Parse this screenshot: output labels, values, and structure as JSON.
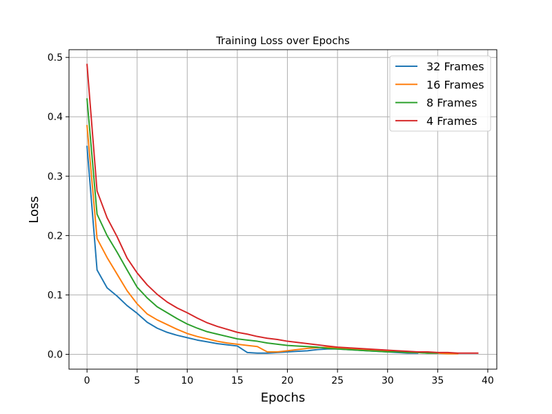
{
  "chart_data": {
    "type": "line",
    "title": "Training Loss over Epochs",
    "xlabel": "Epochs",
    "ylabel": "Loss",
    "xlim": [
      -1.8,
      40.9
    ],
    "ylim": [
      -0.025,
      0.513
    ],
    "xticks": [
      0,
      5,
      10,
      15,
      20,
      25,
      30,
      35,
      40
    ],
    "yticks": [
      0.0,
      0.1,
      0.2,
      0.3,
      0.4,
      0.5
    ],
    "ytick_labels": [
      "0.0",
      "0.1",
      "0.2",
      "0.3",
      "0.4",
      "0.5"
    ],
    "grid": true,
    "legend_position": "top-right",
    "series": [
      {
        "name": "32 Frames",
        "color": "#1f77b4",
        "values": [
          0.35,
          0.142,
          0.112,
          0.098,
          0.082,
          0.069,
          0.054,
          0.044,
          0.037,
          0.032,
          0.028,
          0.024,
          0.021,
          0.018,
          0.016,
          0.014,
          0.003,
          0.002,
          0.002,
          0.003,
          0.004,
          0.005,
          0.006,
          0.008,
          0.009,
          0.009,
          0.008,
          0.007,
          0.006,
          0.005,
          0.004,
          0.003,
          0.002,
          0.002
        ]
      },
      {
        "name": "16 Frames",
        "color": "#ff7f0e",
        "values": [
          0.385,
          0.195,
          0.163,
          0.135,
          0.107,
          0.085,
          0.068,
          0.058,
          0.05,
          0.042,
          0.035,
          0.03,
          0.026,
          0.022,
          0.019,
          0.017,
          0.015,
          0.013,
          0.004,
          0.004,
          0.006,
          0.008,
          0.01,
          0.011,
          0.012,
          0.01,
          0.009,
          0.008,
          0.007,
          0.006,
          0.005,
          0.004,
          0.003,
          0.003,
          0.002,
          0.002,
          0.001,
          0.001
        ]
      },
      {
        "name": "8 Frames",
        "color": "#2ca02c",
        "values": [
          0.43,
          0.236,
          0.2,
          0.172,
          0.142,
          0.113,
          0.095,
          0.08,
          0.07,
          0.06,
          0.051,
          0.044,
          0.038,
          0.034,
          0.03,
          0.026,
          0.024,
          0.022,
          0.019,
          0.017,
          0.015,
          0.014,
          0.013,
          0.012,
          0.01,
          0.009,
          0.008,
          0.007,
          0.006,
          0.005,
          0.004,
          0.004,
          0.003,
          0.003,
          0.002,
          0.002
        ]
      },
      {
        "name": "4 Frames",
        "color": "#d62728",
        "values": [
          0.488,
          0.275,
          0.23,
          0.198,
          0.162,
          0.137,
          0.117,
          0.101,
          0.088,
          0.078,
          0.07,
          0.061,
          0.053,
          0.047,
          0.042,
          0.037,
          0.034,
          0.03,
          0.027,
          0.025,
          0.022,
          0.02,
          0.018,
          0.016,
          0.014,
          0.012,
          0.011,
          0.01,
          0.009,
          0.008,
          0.007,
          0.006,
          0.005,
          0.004,
          0.004,
          0.003,
          0.003,
          0.002,
          0.002,
          0.002
        ]
      }
    ]
  }
}
